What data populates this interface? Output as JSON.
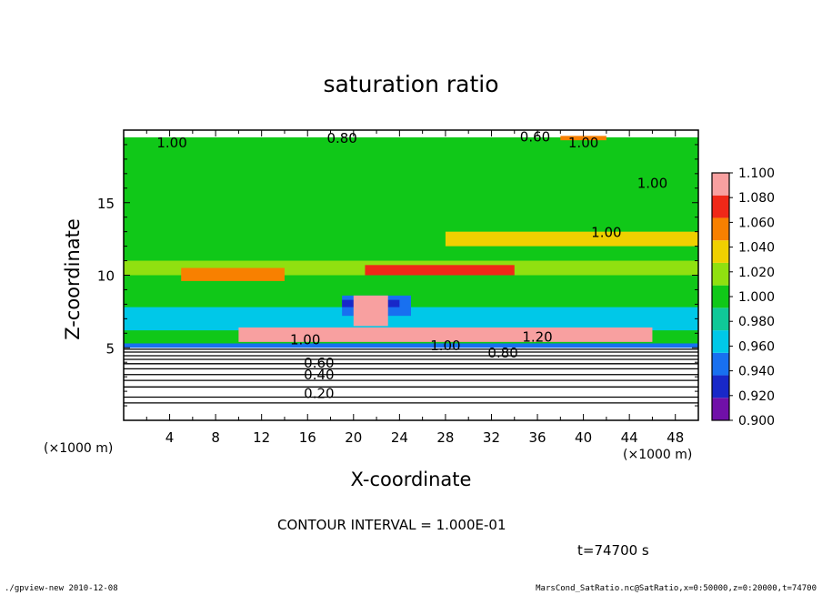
{
  "chart_data": {
    "type": "heatmap",
    "title": "saturation ratio",
    "xlabel": "X-coordinate",
    "ylabel": "Z-coordinate",
    "x_unit_label": "(×1000 m)",
    "y_unit_label": "(×1000 m)",
    "xlim": [
      0,
      50
    ],
    "ylim": [
      0,
      20
    ],
    "x_ticks": [
      4,
      8,
      12,
      16,
      20,
      24,
      28,
      32,
      36,
      40,
      44,
      48
    ],
    "y_ticks": [
      5,
      10,
      15
    ],
    "colorbar": {
      "levels": [
        0.9,
        0.92,
        0.94,
        0.96,
        0.98,
        1.0,
        1.02,
        1.04,
        1.06,
        1.08,
        1.1
      ],
      "labels": [
        "0.900",
        "0.920",
        "0.940",
        "0.960",
        "0.980",
        "1.000",
        "1.020",
        "1.040",
        "1.060",
        "1.080",
        "1.100"
      ],
      "colors": [
        "#7010a8",
        "#1828c8",
        "#1870f0",
        "#00c8e8",
        "#10c898",
        "#10c818",
        "#90e010",
        "#f0d000",
        "#f88000",
        "#f02818",
        "#f8a0a0"
      ]
    },
    "regions": [
      {
        "level": 1.0,
        "x": [
          0,
          50
        ],
        "y": [
          5.2,
          19.5
        ]
      },
      {
        "level": 1.02,
        "x": [
          0,
          50
        ],
        "y": [
          10,
          11
        ]
      },
      {
        "level": 1.06,
        "x": [
          5,
          14
        ],
        "y": [
          9.6,
          10.5
        ]
      },
      {
        "level": 1.08,
        "x": [
          21,
          34
        ],
        "y": [
          10,
          10.7
        ]
      },
      {
        "level": 1.04,
        "x": [
          28,
          50
        ],
        "y": [
          12,
          13
        ]
      },
      {
        "level": 0.96,
        "x": [
          0,
          50
        ],
        "y": [
          6.2,
          7.8
        ]
      },
      {
        "level": 0.94,
        "x": [
          19,
          25
        ],
        "y": [
          7.2,
          8.6
        ]
      },
      {
        "level": 0.92,
        "x": [
          19,
          24
        ],
        "y": [
          7.8,
          8.3
        ]
      },
      {
        "level": 1.1,
        "x": [
          20,
          23
        ],
        "y": [
          6.5,
          8.6
        ]
      },
      {
        "level": 1.1,
        "x": [
          10,
          46
        ],
        "y": [
          5.4,
          6.4
        ]
      },
      {
        "level": 0.94,
        "x": [
          0,
          50
        ],
        "y": [
          5.0,
          5.3
        ]
      },
      {
        "level": 1.06,
        "x": [
          38,
          42
        ],
        "y": [
          19.3,
          19.6
        ]
      }
    ],
    "contour_interval": "1.000E-01",
    "contour_labels": [
      {
        "text": "1.00",
        "x": 4.2,
        "y": 19.2
      },
      {
        "text": "0.80",
        "x": 19.0,
        "y": 19.5
      },
      {
        "text": "0.60",
        "x": 35.8,
        "y": 19.6
      },
      {
        "text": "1.00",
        "x": 40.0,
        "y": 19.2
      },
      {
        "text": "1.00",
        "x": 46.0,
        "y": 16.4
      },
      {
        "text": "1.00",
        "x": 42.0,
        "y": 13.0
      },
      {
        "text": "1.00",
        "x": 15.8,
        "y": 5.6
      },
      {
        "text": "1.00",
        "x": 28.0,
        "y": 5.2
      },
      {
        "text": "1.20",
        "x": 36.0,
        "y": 5.8
      },
      {
        "text": "0.80",
        "x": 33.0,
        "y": 4.7
      },
      {
        "text": "0.60",
        "x": 17.0,
        "y": 4.0
      },
      {
        "text": "0.40",
        "x": 17.0,
        "y": 3.2
      },
      {
        "text": "0.20",
        "x": 17.0,
        "y": 1.9
      }
    ],
    "lower_contour_levels_z": [
      4.9,
      4.7,
      4.45,
      4.2,
      3.9,
      3.55,
      3.15,
      2.75,
      2.3,
      1.6,
      1.2
    ]
  },
  "contour_interval_prefix": "CONTOUR INTERVAL = ",
  "time_label": "t=74700 s",
  "footer_left": "./gpview-new  2010-12-08",
  "footer_right": "MarsCond_SatRatio.nc@SatRatio,x=0:50000,z=0:20000,t=74700"
}
